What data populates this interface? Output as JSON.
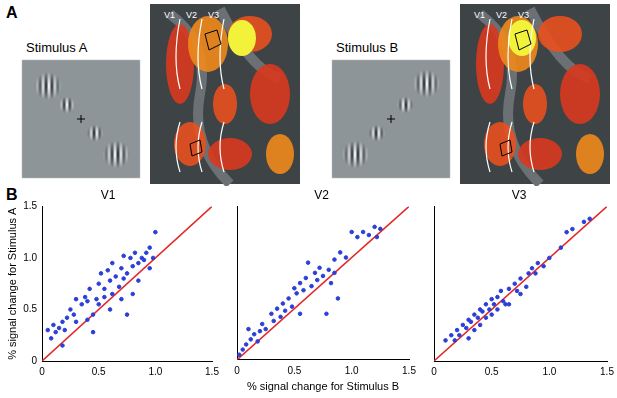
{
  "figure": {
    "panel_labels": [
      "A",
      "B"
    ],
    "stimuli": [
      {
        "label": "Stimulus A",
        "area_labels": [
          "V1",
          "V2",
          "V3"
        ]
      },
      {
        "label": "Stimulus B",
        "area_labels": [
          "V1",
          "V2",
          "V3"
        ]
      }
    ]
  },
  "chart_data": [
    {
      "type": "scatter",
      "title": "V1",
      "ylabel": "% signal change for Stimulus A",
      "x": [
        0.05,
        0.08,
        0.1,
        0.12,
        0.15,
        0.18,
        0.18,
        0.2,
        0.22,
        0.25,
        0.28,
        0.3,
        0.3,
        0.35,
        0.38,
        0.4,
        0.42,
        0.45,
        0.45,
        0.48,
        0.5,
        0.5,
        0.52,
        0.55,
        0.55,
        0.58,
        0.6,
        0.62,
        0.62,
        0.65,
        0.68,
        0.7,
        0.7,
        0.72,
        0.72,
        0.75,
        0.75,
        0.78,
        0.8,
        0.8,
        0.82,
        0.85,
        0.85,
        0.88,
        0.9,
        0.92,
        0.95,
        0.95,
        0.98,
        1.0,
        0.6,
        0.4
      ],
      "values": [
        0.3,
        0.22,
        0.35,
        0.28,
        0.32,
        0.15,
        0.38,
        0.3,
        0.42,
        0.5,
        0.45,
        0.6,
        0.38,
        0.55,
        0.62,
        0.58,
        0.7,
        0.28,
        0.45,
        0.6,
        0.75,
        0.55,
        0.85,
        0.7,
        0.62,
        0.88,
        0.78,
        0.65,
        0.95,
        0.82,
        0.72,
        0.6,
        0.9,
        0.8,
        1.02,
        0.45,
        0.85,
        1.0,
        0.65,
        0.92,
        1.05,
        0.95,
        0.78,
        1.0,
        0.98,
        1.05,
        0.9,
        1.1,
        1.0,
        1.25,
        0.5,
        0.4
      ],
      "color": "#2b3fd6",
      "marker": "circle",
      "xlim": [
        0,
        1.5
      ],
      "ylim": [
        0,
        1.5
      ],
      "xticks": [
        0,
        0.5,
        1,
        1.5
      ],
      "yticks": [
        0,
        0.5,
        1,
        1.5
      ],
      "grid": false,
      "reference_line": {
        "x": [
          0,
          1.5
        ],
        "values": [
          0,
          1.5
        ],
        "color": "#e32626"
      }
    },
    {
      "type": "scatter",
      "title": "V2",
      "xlabel": "% signal change for Stimulus B",
      "tick_labels": "x",
      "x": [
        0.02,
        0.05,
        0.08,
        0.1,
        0.12,
        0.15,
        0.18,
        0.2,
        0.22,
        0.25,
        0.3,
        0.32,
        0.35,
        0.38,
        0.4,
        0.42,
        0.45,
        0.48,
        0.5,
        0.52,
        0.55,
        0.58,
        0.6,
        0.62,
        0.65,
        0.68,
        0.7,
        0.72,
        0.75,
        0.78,
        0.8,
        0.82,
        0.85,
        0.85,
        0.88,
        0.9,
        0.95,
        1.0,
        1.05,
        1.1,
        1.15,
        1.2,
        1.25,
        1.22,
        0.55
      ],
      "values": [
        0.05,
        0.1,
        0.15,
        0.3,
        0.2,
        0.25,
        0.18,
        0.28,
        0.35,
        0.3,
        0.45,
        0.38,
        0.5,
        0.42,
        0.55,
        0.48,
        0.6,
        0.52,
        0.7,
        0.65,
        0.75,
        0.68,
        0.8,
        0.95,
        0.72,
        0.85,
        0.78,
        0.9,
        0.82,
        0.45,
        0.88,
        0.75,
        0.85,
        0.98,
        0.6,
        1.05,
        1.0,
        1.25,
        1.2,
        1.25,
        1.22,
        1.3,
        1.28,
        1.2,
        0.45
      ],
      "color": "#2b3fd6",
      "marker": "circle",
      "xlim": [
        0,
        1.5
      ],
      "ylim": [
        0,
        1.5
      ],
      "xticks": [
        0,
        0.5,
        1,
        1.5
      ],
      "yticks": [
        0,
        0.5,
        1,
        1.5
      ],
      "grid": false,
      "reference_line": {
        "x": [
          0,
          1.5
        ],
        "values": [
          0,
          1.5
        ],
        "color": "#e32626"
      }
    },
    {
      "type": "scatter",
      "title": "V3",
      "tick_labels": "x",
      "x": [
        0.1,
        0.15,
        0.18,
        0.2,
        0.22,
        0.25,
        0.28,
        0.3,
        0.3,
        0.32,
        0.35,
        0.35,
        0.38,
        0.4,
        0.4,
        0.42,
        0.45,
        0.45,
        0.48,
        0.5,
        0.5,
        0.52,
        0.55,
        0.55,
        0.58,
        0.6,
        0.62,
        0.65,
        0.7,
        0.72,
        0.75,
        0.8,
        0.82,
        0.85,
        0.88,
        0.9,
        0.95,
        1.0,
        1.1,
        1.15,
        1.2,
        1.3,
        1.35,
        0.65,
        0.75
      ],
      "values": [
        0.2,
        0.25,
        0.2,
        0.3,
        0.25,
        0.35,
        0.32,
        0.4,
        0.22,
        0.38,
        0.45,
        0.3,
        0.42,
        0.5,
        0.35,
        0.48,
        0.55,
        0.42,
        0.5,
        0.6,
        0.45,
        0.55,
        0.62,
        0.5,
        0.68,
        0.58,
        0.55,
        0.7,
        0.75,
        0.68,
        0.8,
        0.72,
        0.85,
        0.9,
        0.85,
        0.95,
        0.92,
        1.0,
        1.1,
        1.25,
        1.28,
        1.35,
        1.38,
        0.55,
        0.65
      ],
      "color": "#2b3fd6",
      "marker": "circle",
      "xlim": [
        0,
        1.5
      ],
      "ylim": [
        0,
        1.5
      ],
      "xticks": [
        0,
        0.5,
        1,
        1.5
      ],
      "yticks": [
        0,
        0.5,
        1,
        1.5
      ],
      "grid": false,
      "reference_line": {
        "x": [
          0,
          1.5
        ],
        "values": [
          0,
          1.5
        ],
        "color": "#e32626"
      }
    }
  ]
}
